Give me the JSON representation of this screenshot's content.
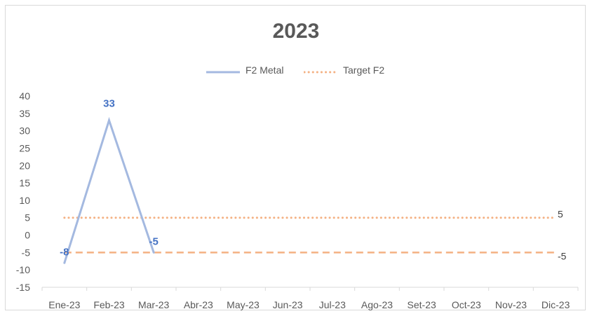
{
  "colors": {
    "series_metal": "#a4b9e0",
    "series_target": "#f4b183",
    "data_label": "#4472c4",
    "axis": "#d9d9d9",
    "text": "#595959"
  },
  "chart_data": {
    "type": "line",
    "title": "2023",
    "xlabel": "",
    "ylabel": "",
    "ylim": [
      -15,
      40
    ],
    "ytick_step": 5,
    "yticks": [
      "40",
      "35",
      "30",
      "25",
      "20",
      "15",
      "10",
      "5",
      "0",
      "-5",
      "-10",
      "-15"
    ],
    "categories": [
      "Ene-23",
      "Feb-23",
      "Mar-23",
      "Abr-23",
      "May-23",
      "Jun-23",
      "Jul-23",
      "Ago-23",
      "Set-23",
      "Oct-23",
      "Nov-23",
      "Dic-23"
    ],
    "grid": false,
    "legend_position": "top",
    "series": [
      {
        "name": "F2 Metal",
        "values": [
          -8,
          33,
          -5,
          null,
          null,
          null,
          null,
          null,
          null,
          null,
          null,
          null
        ],
        "data_labels": [
          "-8",
          "33",
          "-5"
        ],
        "style": "solid"
      },
      {
        "name": "Target F2",
        "values": [
          5,
          5,
          5,
          5,
          5,
          5,
          5,
          5,
          5,
          5,
          5,
          5
        ],
        "end_label": "5",
        "style": "dotted"
      },
      {
        "name": "",
        "values": [
          -5,
          -5,
          -5,
          -5,
          -5,
          -5,
          -5,
          -5,
          -5,
          -5,
          -5,
          -5
        ],
        "end_label": "-5",
        "style": "dashed"
      }
    ]
  }
}
